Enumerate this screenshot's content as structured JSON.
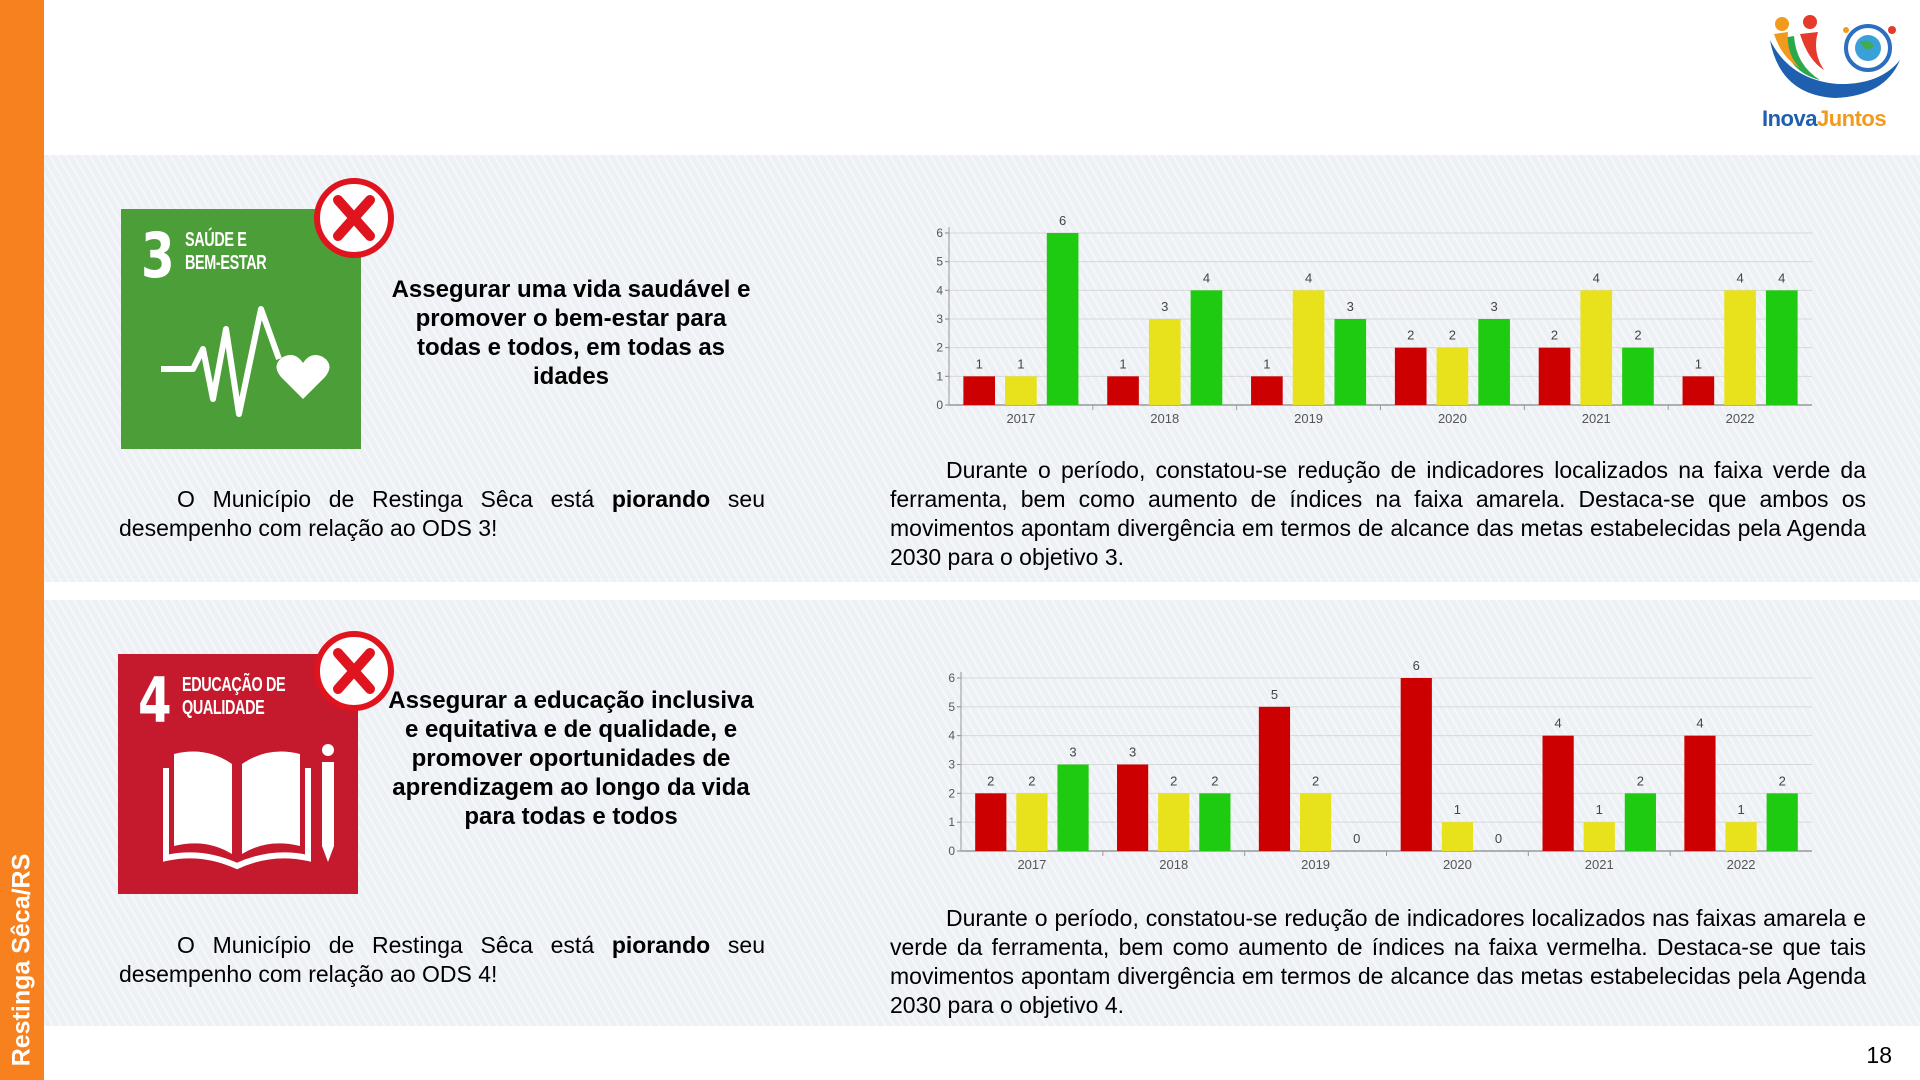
{
  "sidebar": "Restinga Sêca/RS",
  "logo": {
    "part1": "Inova",
    "part2": "Juntos"
  },
  "page_number": "18",
  "sections": [
    {
      "goal_number": "3",
      "goal_title": [
        "SAÚDE E",
        "BEM-ESTAR"
      ],
      "heading": "Assegurar uma vida saudável e promover o bem-estar para todas e todos, em todas as idades",
      "status": [
        "O Município de Restinga Sêca está ",
        "piorando",
        " seu desempenho com relação ao ODS 3!"
      ],
      "description": "Durante o período, constatou-se redução de indicadores localizados na faixa verde da ferramenta, bem como aumento de índices na faixa amarela. Destaca-se que ambos os movimentos apontam divergência em termos de alcance das metas estabelecidas pela Agenda 2030 para o objetivo 3."
    },
    {
      "goal_number": "4",
      "goal_title": [
        "EDUCAÇÃO DE",
        "QUALIDADE"
      ],
      "heading": "Assegurar a educação inclusiva e equitativa e de qualidade, e promover oportunidades de aprendizagem ao longo da vida para todas e todos",
      "status": [
        "O Município de Restinga Sêca está ",
        "piorando",
        " seu desempenho com relação ao ODS 4!"
      ],
      "description": "Durante o período, constatou-se redução de indicadores localizados nas faixas amarela e verde da ferramenta, bem como aumento de índices na faixa vermelha. Destaca-se que tais movimentos apontam divergência em termos de alcance das metas estabelecidas pela Agenda 2030 para o objetivo 4."
    }
  ],
  "chart_data": [
    {
      "type": "bar",
      "categories": [
        "2017",
        "2018",
        "2019",
        "2020",
        "2021",
        "2022"
      ],
      "series": [
        {
          "color": "#cc0000",
          "values": [
            1,
            1,
            1,
            2,
            2,
            1
          ]
        },
        {
          "color": "#e8e21c",
          "values": [
            1,
            3,
            4,
            2,
            4,
            4
          ]
        },
        {
          "color": "#1fcb10",
          "values": [
            6,
            4,
            3,
            3,
            2,
            4
          ]
        }
      ],
      "ylim": [
        0,
        6
      ],
      "yticks": [
        0,
        1,
        2,
        3,
        4,
        5,
        6
      ],
      "grid": true
    },
    {
      "type": "bar",
      "categories": [
        "2017",
        "2018",
        "2019",
        "2020",
        "2021",
        "2022"
      ],
      "series": [
        {
          "color": "#cc0000",
          "values": [
            2,
            3,
            5,
            6,
            4,
            4
          ]
        },
        {
          "color": "#e8e21c",
          "values": [
            2,
            2,
            2,
            1,
            1,
            1
          ]
        },
        {
          "color": "#1fcb10",
          "values": [
            3,
            2,
            0,
            0,
            2,
            2
          ]
        }
      ],
      "ylim": [
        0,
        6
      ],
      "yticks": [
        0,
        1,
        2,
        3,
        4,
        5,
        6
      ],
      "grid": true
    }
  ]
}
